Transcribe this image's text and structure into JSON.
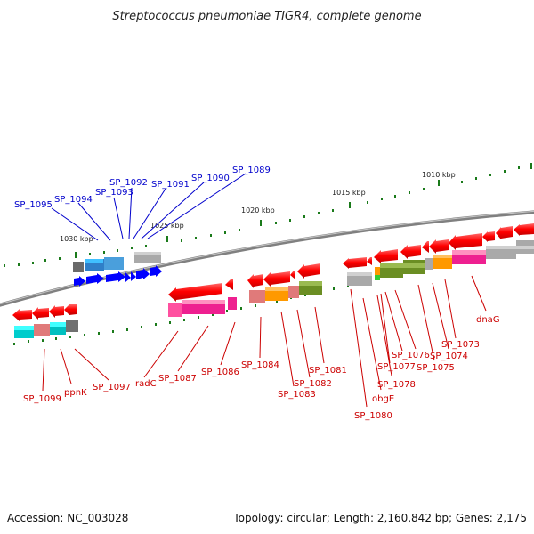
{
  "title": "Streptococcus pneumoniae TIGR4, complete genome",
  "footer": {
    "accession": "Accession: NC_003028",
    "summary": "Topology: circular; Length: 2,160,842 bp; Genes: 2,175"
  },
  "scale_labels": [
    {
      "text": "1030 kbp",
      "kind": "kbp-label"
    },
    {
      "text": "1025 kbp",
      "kind": "kbp-label"
    },
    {
      "text": "1020 kbp",
      "kind": "kbp-label"
    },
    {
      "text": "1015 kbp",
      "kind": "kbp-label"
    },
    {
      "text": "1010 kbp",
      "kind": "kbp-label"
    }
  ],
  "forward_genes": [
    "SP_1095",
    "SP_1094",
    "SP_1093",
    "SP_1092",
    "SP_1091",
    "SP_1090",
    "SP_1089"
  ],
  "reverse_genes": [
    "SP_1099",
    "ppnK",
    "SP_1097",
    "radC",
    "SP_1087",
    "SP_1086",
    "SP_1084",
    "SP_1083",
    "SP_1082",
    "SP_1081",
    "SP_1080",
    "obgE",
    "SP_1078",
    "SP_1077",
    "SP_1076",
    "SP_1075",
    "SP_1074",
    "SP_1073",
    "dnaG"
  ],
  "colors": {
    "forward_strand": "#0000ff",
    "reverse_strand": "#ff0000",
    "backbone": "#808080",
    "tick": "#1a7a1a",
    "forward_label": "#0000cc",
    "reverse_label": "#cc0000"
  }
}
